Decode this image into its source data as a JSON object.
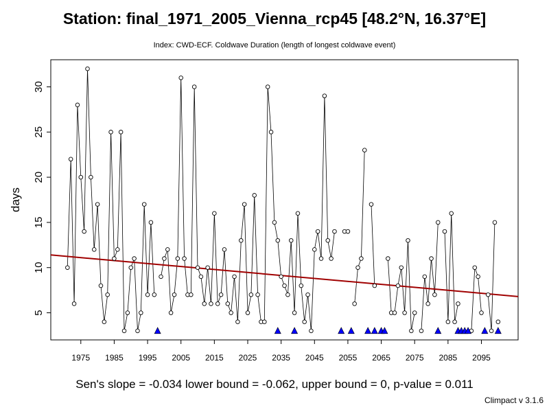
{
  "header": {
    "title": "Station: final_1971_2005_Vienna_rcp45 [48.2°N, 16.37°E]",
    "subtitle": "Index: CWD-ECF. Coldwave Duration (length of longest coldwave event)"
  },
  "footer": {
    "stats": "Sen's slope = -0.034   lower bound = -0.062,   upper bound = 0,   p-value = 0.011",
    "version": "Climpact v 3.1.6"
  },
  "colors": {
    "series_line": "#000000",
    "trend_line": "#a00000",
    "triangle_fill": "#0000ff"
  },
  "chart_data": {
    "type": "line",
    "title": "Station: final_1971_2005_Vienna_rcp45 [48.2°N, 16.37°E]",
    "subtitle": "Index: CWD-ECF. Coldwave Duration (length of longest coldwave event)",
    "xlabel": "",
    "ylabel": "days",
    "xlim": [
      1966,
      2106
    ],
    "ylim": [
      2,
      33
    ],
    "xticks": [
      1975,
      1985,
      1995,
      2005,
      2015,
      2025,
      2035,
      2045,
      2055,
      2065,
      2075,
      2085,
      2095
    ],
    "yticks": [
      5,
      10,
      15,
      20,
      25,
      30
    ],
    "grid": false,
    "series": [
      {
        "x": [
          1971,
          1972,
          1973,
          1974,
          1975,
          1976,
          1977,
          1978,
          1979,
          1980,
          1981,
          1982,
          1983,
          1984,
          1985,
          1986,
          1987,
          1988,
          1989,
          1990,
          1991,
          1992,
          1993,
          1994,
          1995,
          1996,
          1997,
          1999,
          2000,
          2001,
          2002,
          2003,
          2004,
          2005,
          2006,
          2007,
          2008,
          2009,
          2010,
          2011,
          2012,
          2013,
          2014,
          2015,
          2016,
          2017,
          2018,
          2019,
          2020,
          2021,
          2022,
          2023,
          2024,
          2025,
          2026,
          2027,
          2028,
          2029,
          2030,
          2031,
          2032,
          2033,
          2034,
          2035,
          2036,
          2037,
          2038,
          2039,
          2040,
          2041,
          2042,
          2043,
          2044,
          2045,
          2046,
          2047,
          2048,
          2049,
          2050,
          2051,
          2054,
          2055,
          2057,
          2058,
          2059,
          2060,
          2062,
          2063,
          2067,
          2068,
          2069,
          2070,
          2071,
          2072,
          2073,
          2074,
          2075,
          2077,
          2078,
          2079,
          2080,
          2081,
          2082,
          2084,
          2085,
          2086,
          2087,
          2088,
          2092,
          2093,
          2094,
          2095,
          2097,
          2098,
          2099
        ],
        "values": [
          10,
          22,
          6,
          28,
          20,
          14,
          32,
          20,
          12,
          17,
          8,
          4,
          7,
          25,
          11,
          12,
          25,
          3,
          5,
          10,
          11,
          3,
          5,
          17,
          7,
          15,
          7,
          9,
          11,
          12,
          5,
          7,
          11,
          31,
          11,
          7,
          7,
          30,
          10,
          9,
          6,
          10,
          6,
          16,
          6,
          7,
          12,
          6,
          5,
          9,
          4,
          13,
          17,
          5,
          7,
          18,
          7,
          4,
          4,
          30,
          25,
          15,
          13,
          9,
          8,
          7,
          13,
          5,
          16,
          8,
          4,
          7,
          3,
          12,
          14,
          11,
          29,
          13,
          11,
          14,
          14,
          14,
          6,
          10,
          11,
          23,
          17,
          8,
          11,
          5,
          5,
          8,
          10,
          5,
          13,
          3,
          5,
          3,
          9,
          6,
          11,
          7,
          15,
          14,
          4,
          16,
          4,
          6,
          3,
          10,
          9,
          5,
          7,
          3,
          15
        ]
      }
    ],
    "trend": {
      "x": [
        1966,
        2106
      ],
      "y": [
        11.4,
        6.8
      ]
    },
    "zero_markers": {
      "value": 3,
      "x": [
        1998,
        2034,
        2039,
        2053,
        2056,
        2061,
        2063,
        2065,
        2066,
        2082,
        2088,
        2089,
        2090,
        2091,
        2096,
        2100
      ]
    },
    "extra_points": [
      {
        "x": 2100,
        "y": 4
      }
    ]
  }
}
